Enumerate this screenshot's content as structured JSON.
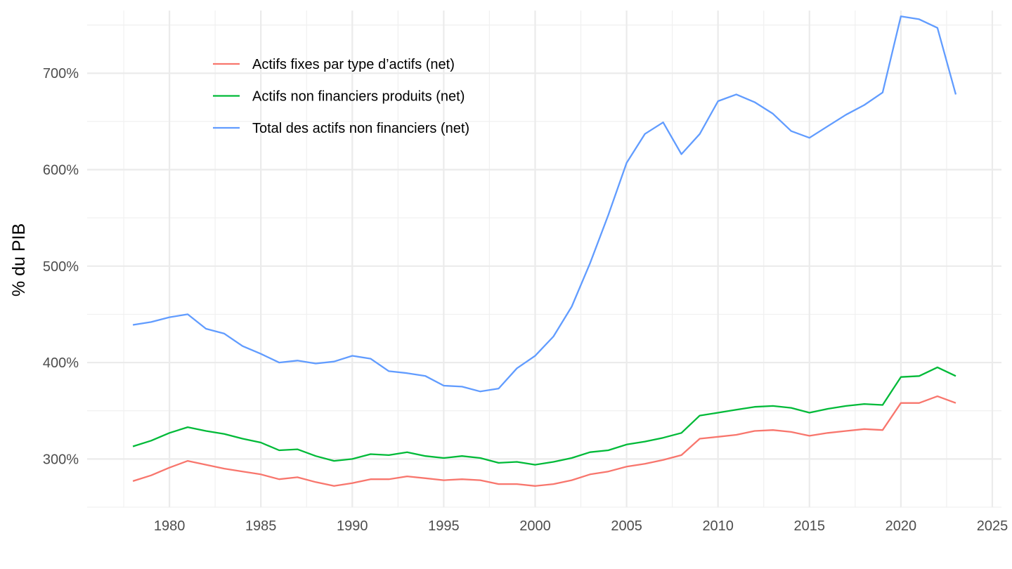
{
  "chart_data": {
    "type": "line",
    "title": "",
    "xlabel": "",
    "ylabel": "% du PIB",
    "xlim": [
      1975.5,
      2025.5
    ],
    "ylim": [
      250,
      765
    ],
    "x_ticks": [
      1980,
      1985,
      1990,
      1995,
      2000,
      2005,
      2010,
      2015,
      2020,
      2025
    ],
    "y_ticks": [
      300,
      400,
      500,
      600,
      700
    ],
    "y_tick_labels": [
      "300%",
      "400%",
      "500%",
      "600%",
      "700%"
    ],
    "grid": true,
    "legend_position": "top-left",
    "x": [
      1978,
      1979,
      1980,
      1981,
      1982,
      1983,
      1984,
      1985,
      1986,
      1987,
      1988,
      1989,
      1990,
      1991,
      1992,
      1993,
      1994,
      1995,
      1996,
      1997,
      1998,
      1999,
      2000,
      2001,
      2002,
      2003,
      2004,
      2005,
      2006,
      2007,
      2008,
      2009,
      2010,
      2011,
      2012,
      2013,
      2014,
      2015,
      2016,
      2017,
      2018,
      2019,
      2020,
      2021,
      2022,
      2023
    ],
    "series": [
      {
        "name": "Actifs fixes par type d’actifs (net)",
        "color": "#F8766D",
        "values": [
          277,
          283,
          291,
          298,
          294,
          290,
          287,
          284,
          279,
          281,
          276,
          272,
          275,
          279,
          279,
          282,
          280,
          278,
          279,
          278,
          274,
          274,
          272,
          274,
          278,
          284,
          287,
          292,
          295,
          299,
          304,
          321,
          323,
          325,
          329,
          330,
          328,
          324,
          327,
          329,
          331,
          330,
          358,
          358,
          365,
          358
        ]
      },
      {
        "name": "Actifs non financiers produits (net)",
        "color": "#00BA38",
        "values": [
          313,
          319,
          327,
          333,
          329,
          326,
          321,
          317,
          309,
          310,
          303,
          298,
          300,
          305,
          304,
          307,
          303,
          301,
          303,
          301,
          296,
          297,
          294,
          297,
          301,
          307,
          309,
          315,
          318,
          322,
          327,
          345,
          348,
          351,
          354,
          355,
          353,
          348,
          352,
          355,
          357,
          356,
          385,
          386,
          395,
          386
        ]
      },
      {
        "name": "Total des actifs non financiers (net)",
        "color": "#619CFF",
        "values": [
          439,
          442,
          447,
          450,
          435,
          430,
          417,
          409,
          400,
          402,
          399,
          401,
          407,
          404,
          391,
          389,
          386,
          376,
          375,
          370,
          373,
          394,
          407,
          427,
          458,
          503,
          553,
          607,
          637,
          649,
          616,
          637,
          671,
          678,
          670,
          658,
          640,
          633,
          645,
          657,
          667,
          680,
          759,
          756,
          747,
          678
        ]
      }
    ]
  }
}
